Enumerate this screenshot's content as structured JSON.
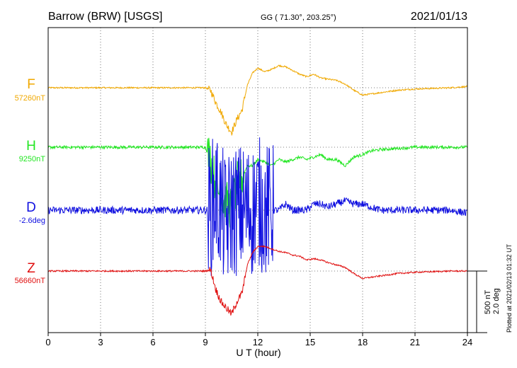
{
  "header": {
    "station": "Barrow (BRW)  [USGS]",
    "coords": "GG ( 71.30°, 203.25°)",
    "date": "2021/01/13"
  },
  "side_text": "Plotted at 2021/02/13 01:32 UT",
  "scale_labels": [
    "500 nT",
    "2.0 deg"
  ],
  "colors": {
    "F": "#f0a800",
    "H": "#22e622",
    "D": "#1010e0",
    "Z": "#e01010"
  },
  "chart_data": {
    "type": "line",
    "title": "Barrow (BRW)  [USGS]",
    "xlabel": "U T (hour)",
    "xlim": [
      0,
      24
    ],
    "x_ticks": [
      "0",
      "3",
      "6",
      "9",
      "12",
      "15",
      "18",
      "21",
      "24"
    ],
    "grid": true,
    "series": [
      {
        "name": "F",
        "baseline_label": "57260nT",
        "x": [
          0,
          1,
          3,
          5,
          7,
          8.5,
          9.0,
          9.3,
          9.6,
          9.9,
          10.2,
          10.5,
          10.8,
          11.1,
          11.4,
          11.7,
          12.0,
          12.4,
          12.8,
          13.2,
          13.6,
          14.0,
          14.4,
          14.8,
          15.2,
          15.6,
          16.0,
          16.5,
          17.0,
          17.5,
          18.0,
          18.5,
          19.0,
          20.0,
          21.0,
          22.0,
          23.0,
          24.0
        ],
        "values": [
          0,
          0,
          0,
          0,
          0,
          0,
          0,
          -20,
          -120,
          -200,
          -300,
          -360,
          -260,
          -180,
          20,
          120,
          160,
          130,
          150,
          180,
          170,
          140,
          110,
          90,
          110,
          80,
          70,
          60,
          30,
          -20,
          -60,
          -50,
          -40,
          -20,
          -10,
          -5,
          0,
          10
        ],
        "noise": 6,
        "burst": [
          9.2,
          11.3,
          30
        ]
      },
      {
        "name": "H",
        "baseline_label": "9250nT",
        "x": [
          0,
          1,
          3,
          5,
          7,
          8.5,
          9.0,
          9.3,
          9.6,
          9.9,
          10.2,
          10.5,
          10.8,
          11.1,
          11.4,
          11.7,
          12.0,
          12.4,
          12.8,
          13.2,
          13.6,
          14.0,
          14.4,
          14.8,
          15.2,
          15.6,
          16.0,
          16.5,
          17.0,
          17.5,
          18.0,
          18.5,
          19.0,
          20.0,
          21.0,
          22.0,
          23.0,
          24.0
        ],
        "values": [
          0,
          0,
          0,
          0,
          0,
          0,
          0,
          -100,
          -300,
          -400,
          -450,
          -500,
          -300,
          -250,
          -150,
          -150,
          -100,
          -120,
          -150,
          -100,
          -120,
          -100,
          -80,
          -100,
          -80,
          -60,
          -100,
          -100,
          -150,
          -80,
          -60,
          -30,
          -20,
          -10,
          0,
          0,
          0,
          0
        ],
        "noise": 12,
        "burst": [
          9.1,
          11.2,
          180
        ]
      },
      {
        "name": "D",
        "baseline_label": "-2.6deg",
        "x": [
          0,
          1,
          3,
          5,
          7,
          8.5,
          9.0,
          9.3,
          9.6,
          9.9,
          10.2,
          10.5,
          10.8,
          11.1,
          11.4,
          11.7,
          12.0,
          12.4,
          12.8,
          13.2,
          13.6,
          14.0,
          14.4,
          14.8,
          15.2,
          15.6,
          16.0,
          16.5,
          17.0,
          17.5,
          18.0,
          18.5,
          19.0,
          20.0,
          21.0,
          22.0,
          23.0,
          24.0
        ],
        "values": [
          0,
          0,
          0,
          0,
          0,
          0,
          0,
          0,
          0.5,
          0,
          -0.5,
          0,
          0,
          0,
          0,
          0,
          0.3,
          0,
          0,
          0,
          0.2,
          0,
          0,
          0,
          0.2,
          0.2,
          0.1,
          0.2,
          0.3,
          0.2,
          0.2,
          0.1,
          0,
          0,
          0,
          0,
          0,
          -0.1
        ],
        "noise": 0.12,
        "burst": [
          9.1,
          12.9,
          2.2
        ]
      },
      {
        "name": "Z",
        "baseline_label": "56660nT",
        "x": [
          0,
          1,
          3,
          5,
          7,
          8.5,
          9.0,
          9.3,
          9.6,
          9.9,
          10.2,
          10.5,
          10.8,
          11.1,
          11.4,
          11.7,
          12.0,
          12.4,
          12.8,
          13.2,
          13.6,
          14.0,
          14.4,
          14.8,
          15.2,
          15.6,
          16.0,
          16.5,
          17.0,
          17.5,
          18.0,
          18.5,
          19.0,
          20.0,
          21.0,
          22.0,
          23.0,
          24.0
        ],
        "values": [
          0,
          0,
          0,
          0,
          0,
          0,
          0,
          10,
          -150,
          -250,
          -300,
          -350,
          -250,
          -180,
          50,
          150,
          200,
          200,
          180,
          160,
          150,
          130,
          120,
          90,
          100,
          90,
          70,
          50,
          30,
          -20,
          -60,
          -50,
          -40,
          -20,
          -10,
          -5,
          0,
          0
        ],
        "noise": 6,
        "burst": [
          9.2,
          11.3,
          30
        ]
      }
    ],
    "scale_bar": {
      "nT": 500,
      "deg": 2.0
    }
  }
}
